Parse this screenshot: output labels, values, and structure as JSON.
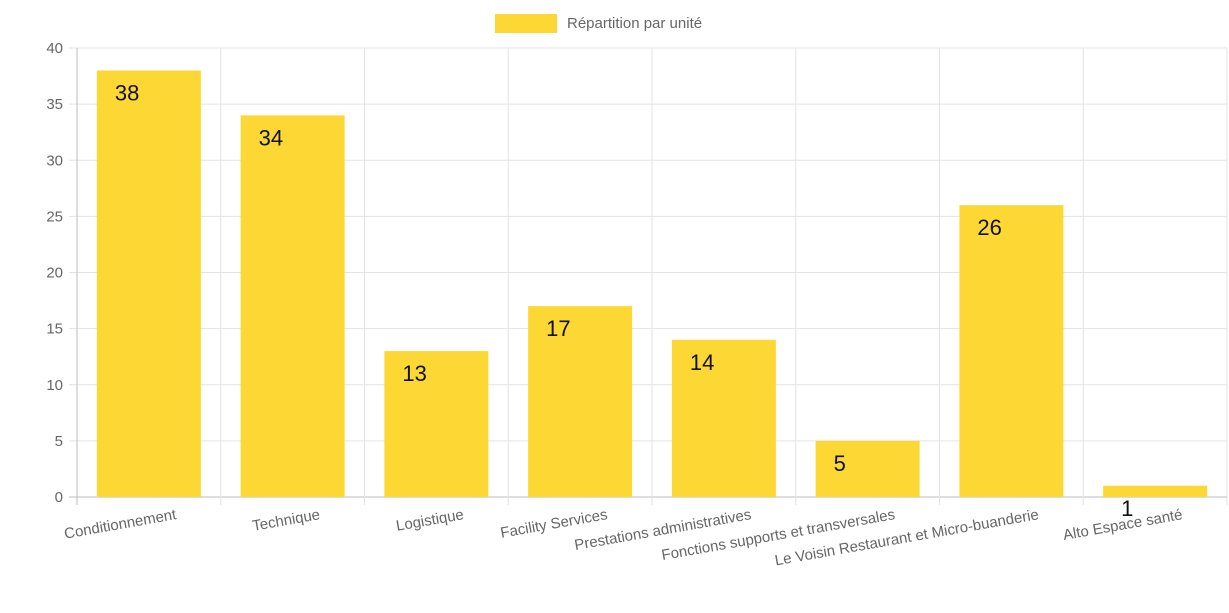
{
  "chart_data": {
    "type": "bar",
    "categories": [
      "Conditionnement",
      "Technique",
      "Logistique",
      "Facility Services",
      "Prestations administratives",
      "Fonctions supports et transversales",
      "Le Voisin Restaurant et Micro-buanderie",
      "Alto Espace santé"
    ],
    "series": [
      {
        "name": "Répartition par unité",
        "values": [
          38,
          34,
          13,
          17,
          14,
          5,
          26,
          1
        ]
      }
    ],
    "yticks": [
      0,
      5,
      10,
      15,
      20,
      25,
      30,
      35,
      40
    ],
    "ylim": [
      0,
      40
    ],
    "grid": true,
    "legend_position": "top",
    "bar_color": "#FDD835",
    "grid_color": "#E3E3E3",
    "axis_color": "#BDBDBD"
  }
}
